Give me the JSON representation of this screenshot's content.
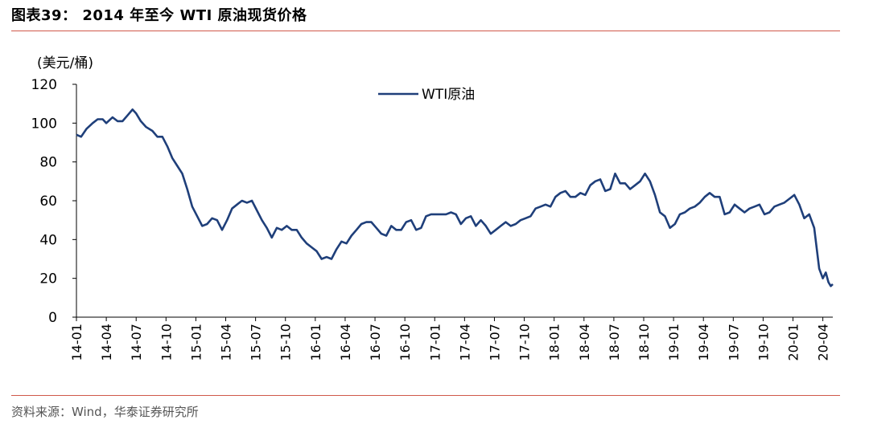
{
  "header": {
    "title": "图表39：  2014 年至今 WTI 原油现货价格"
  },
  "footer": {
    "source": "资料来源：Wind，华泰证券研究所"
  },
  "colors": {
    "line": "#1f3f7a",
    "rule": "#d0584a"
  },
  "chart_data": {
    "type": "line",
    "ylabel": "(美元/桶)",
    "ylim": [
      0,
      120
    ],
    "yticks": [
      0,
      20,
      40,
      60,
      80,
      100,
      120
    ],
    "xlim": [
      "2014-01",
      "2020-05"
    ],
    "xticks": [
      "14-01",
      "14-04",
      "14-07",
      "14-10",
      "15-01",
      "15-04",
      "15-07",
      "15-10",
      "16-01",
      "16-04",
      "16-07",
      "16-10",
      "17-01",
      "17-04",
      "17-07",
      "17-10",
      "18-01",
      "18-04",
      "18-07",
      "18-10",
      "19-01",
      "19-04",
      "19-07",
      "19-10",
      "20-01",
      "20-04"
    ],
    "legend": "top-center",
    "series": [
      {
        "name": "WTI原油",
        "color": "#1f3f7a",
        "points": [
          [
            "2014-01-01",
            94
          ],
          [
            "2014-01-15",
            93
          ],
          [
            "2014-02-01",
            97
          ],
          [
            "2014-02-20",
            100
          ],
          [
            "2014-03-05",
            102
          ],
          [
            "2014-03-20",
            102
          ],
          [
            "2014-04-01",
            100
          ],
          [
            "2014-04-20",
            103
          ],
          [
            "2014-05-05",
            101
          ],
          [
            "2014-05-20",
            101
          ],
          [
            "2014-06-05",
            104
          ],
          [
            "2014-06-20",
            107
          ],
          [
            "2014-07-01",
            105
          ],
          [
            "2014-07-15",
            101
          ],
          [
            "2014-08-01",
            98
          ],
          [
            "2014-08-20",
            96
          ],
          [
            "2014-09-05",
            93
          ],
          [
            "2014-09-20",
            93
          ],
          [
            "2014-10-05",
            88
          ],
          [
            "2014-10-20",
            82
          ],
          [
            "2014-11-05",
            78
          ],
          [
            "2014-11-20",
            74
          ],
          [
            "2014-12-05",
            66
          ],
          [
            "2014-12-20",
            57
          ],
          [
            "2015-01-05",
            52
          ],
          [
            "2015-01-20",
            47
          ],
          [
            "2015-02-05",
            48
          ],
          [
            "2015-02-20",
            51
          ],
          [
            "2015-03-05",
            50
          ],
          [
            "2015-03-20",
            45
          ],
          [
            "2015-04-05",
            50
          ],
          [
            "2015-04-20",
            56
          ],
          [
            "2015-05-05",
            58
          ],
          [
            "2015-05-20",
            60
          ],
          [
            "2015-06-05",
            59
          ],
          [
            "2015-06-20",
            60
          ],
          [
            "2015-07-05",
            55
          ],
          [
            "2015-07-20",
            50
          ],
          [
            "2015-08-05",
            46
          ],
          [
            "2015-08-20",
            41
          ],
          [
            "2015-09-05",
            46
          ],
          [
            "2015-09-20",
            45
          ],
          [
            "2015-10-05",
            47
          ],
          [
            "2015-10-20",
            45
          ],
          [
            "2015-11-05",
            45
          ],
          [
            "2015-11-20",
            41
          ],
          [
            "2015-12-05",
            38
          ],
          [
            "2015-12-20",
            36
          ],
          [
            "2016-01-05",
            34
          ],
          [
            "2016-01-20",
            30
          ],
          [
            "2016-02-05",
            31
          ],
          [
            "2016-02-20",
            30
          ],
          [
            "2016-03-05",
            35
          ],
          [
            "2016-03-20",
            39
          ],
          [
            "2016-04-05",
            38
          ],
          [
            "2016-04-20",
            42
          ],
          [
            "2016-05-05",
            45
          ],
          [
            "2016-05-20",
            48
          ],
          [
            "2016-06-05",
            49
          ],
          [
            "2016-06-20",
            49
          ],
          [
            "2016-07-05",
            46
          ],
          [
            "2016-07-20",
            43
          ],
          [
            "2016-08-05",
            42
          ],
          [
            "2016-08-20",
            47
          ],
          [
            "2016-09-05",
            45
          ],
          [
            "2016-09-20",
            45
          ],
          [
            "2016-10-05",
            49
          ],
          [
            "2016-10-20",
            50
          ],
          [
            "2016-11-05",
            45
          ],
          [
            "2016-11-20",
            46
          ],
          [
            "2016-12-05",
            52
          ],
          [
            "2016-12-20",
            53
          ],
          [
            "2017-01-05",
            53
          ],
          [
            "2017-01-20",
            53
          ],
          [
            "2017-02-05",
            53
          ],
          [
            "2017-02-20",
            54
          ],
          [
            "2017-03-05",
            53
          ],
          [
            "2017-03-20",
            48
          ],
          [
            "2017-04-05",
            51
          ],
          [
            "2017-04-20",
            52
          ],
          [
            "2017-05-05",
            47
          ],
          [
            "2017-05-20",
            50
          ],
          [
            "2017-06-05",
            47
          ],
          [
            "2017-06-20",
            43
          ],
          [
            "2017-07-05",
            45
          ],
          [
            "2017-07-20",
            47
          ],
          [
            "2017-08-05",
            49
          ],
          [
            "2017-08-20",
            47
          ],
          [
            "2017-09-05",
            48
          ],
          [
            "2017-09-20",
            50
          ],
          [
            "2017-10-05",
            51
          ],
          [
            "2017-10-20",
            52
          ],
          [
            "2017-11-05",
            56
          ],
          [
            "2017-11-20",
            57
          ],
          [
            "2017-12-05",
            58
          ],
          [
            "2017-12-20",
            57
          ],
          [
            "2018-01-05",
            62
          ],
          [
            "2018-01-20",
            64
          ],
          [
            "2018-02-05",
            65
          ],
          [
            "2018-02-20",
            62
          ],
          [
            "2018-03-05",
            62
          ],
          [
            "2018-03-20",
            64
          ],
          [
            "2018-04-05",
            63
          ],
          [
            "2018-04-20",
            68
          ],
          [
            "2018-05-05",
            70
          ],
          [
            "2018-05-20",
            71
          ],
          [
            "2018-06-05",
            65
          ],
          [
            "2018-06-20",
            66
          ],
          [
            "2018-07-05",
            74
          ],
          [
            "2018-07-20",
            69
          ],
          [
            "2018-08-05",
            69
          ],
          [
            "2018-08-20",
            66
          ],
          [
            "2018-09-05",
            68
          ],
          [
            "2018-09-20",
            70
          ],
          [
            "2018-10-05",
            74
          ],
          [
            "2018-10-20",
            70
          ],
          [
            "2018-11-05",
            63
          ],
          [
            "2018-11-20",
            54
          ],
          [
            "2018-12-05",
            52
          ],
          [
            "2018-12-20",
            46
          ],
          [
            "2019-01-05",
            48
          ],
          [
            "2019-01-20",
            53
          ],
          [
            "2019-02-05",
            54
          ],
          [
            "2019-02-20",
            56
          ],
          [
            "2019-03-05",
            57
          ],
          [
            "2019-03-20",
            59
          ],
          [
            "2019-04-05",
            62
          ],
          [
            "2019-04-20",
            64
          ],
          [
            "2019-05-05",
            62
          ],
          [
            "2019-05-20",
            62
          ],
          [
            "2019-06-05",
            53
          ],
          [
            "2019-06-20",
            54
          ],
          [
            "2019-07-05",
            58
          ],
          [
            "2019-07-20",
            56
          ],
          [
            "2019-08-05",
            54
          ],
          [
            "2019-08-20",
            56
          ],
          [
            "2019-09-05",
            57
          ],
          [
            "2019-09-20",
            58
          ],
          [
            "2019-10-05",
            53
          ],
          [
            "2019-10-20",
            54
          ],
          [
            "2019-11-05",
            57
          ],
          [
            "2019-11-20",
            58
          ],
          [
            "2019-12-05",
            59
          ],
          [
            "2019-12-20",
            61
          ],
          [
            "2020-01-05",
            63
          ],
          [
            "2020-01-20",
            58
          ],
          [
            "2020-02-05",
            51
          ],
          [
            "2020-02-20",
            53
          ],
          [
            "2020-03-05",
            46
          ],
          [
            "2020-03-20",
            25
          ],
          [
            "2020-04-01",
            20
          ],
          [
            "2020-04-10",
            23
          ],
          [
            "2020-04-18",
            18
          ],
          [
            "2020-04-25",
            16
          ],
          [
            "2020-05-01",
            17
          ]
        ]
      }
    ]
  }
}
